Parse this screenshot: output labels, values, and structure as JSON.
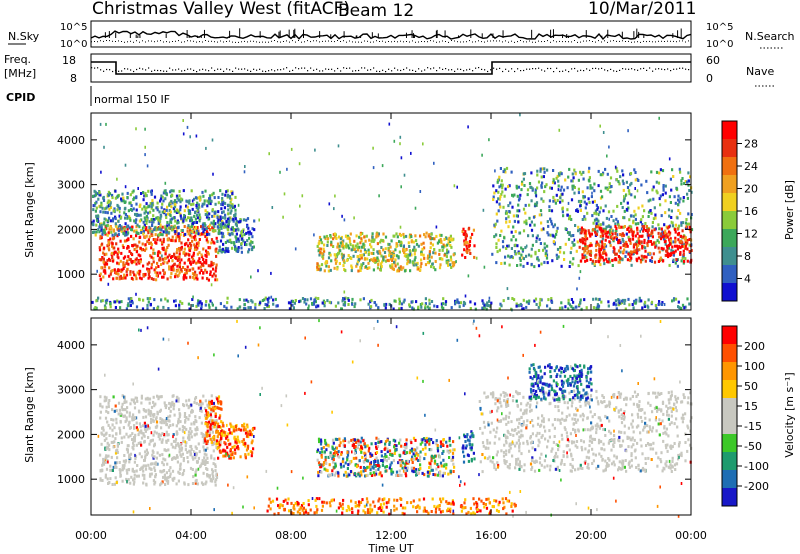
{
  "header": {
    "title": "Christmas Valley West (fitACF)",
    "beam": "Beam 12",
    "date": "10/Mar/2011"
  },
  "top_panels": {
    "nsky_label": "N.Sky",
    "nsky_ticks": [
      "10^5",
      "10^0"
    ],
    "nsearch_label": "N.Search",
    "nsearch_ticks": [
      "10^5",
      "10^0"
    ],
    "freq_label": "Freq.",
    "freq_unit": "[MHz]",
    "freq_ticks": [
      "18",
      "8"
    ],
    "nave_label": "Nave",
    "nave_ticks": [
      "60",
      "0"
    ],
    "cpid_label": "CPID",
    "cpid_value": "normal 150 IF"
  },
  "colors": {
    "power_scale": [
      "#1010d0",
      "#3060c0",
      "#3f8f8f",
      "#3ca85a",
      "#8acb3a",
      "#f0d020",
      "#f0a020",
      "#f07010",
      "#e83010",
      "#ff0000"
    ],
    "velocity_scale": [
      "#1818c8",
      "#1e6eb4",
      "#1e9b6e",
      "#3cc828",
      "#c8c8c0",
      "#c8c8c0",
      "#ffc800",
      "#ff9600",
      "#ff5000",
      "#ff0000"
    ],
    "ground_scatter": "#c8c8c0"
  },
  "chart_data": [
    {
      "type": "heatmap",
      "panel": "power",
      "ylabel": "Slant Range [km]",
      "yticks": [
        "1000",
        "2000",
        "3000",
        "4000"
      ],
      "ylim": [
        200,
        4600
      ],
      "xlim": [
        0,
        24
      ],
      "colorbar_label": "Power [dB]",
      "colorbar_ticks": [
        "28",
        "24",
        "20",
        "16",
        "12",
        "8",
        "4"
      ],
      "regions": [
        {
          "t0": 0.3,
          "t1": 5.0,
          "r0": 900,
          "r1": 2100,
          "level": 0.85
        },
        {
          "t0": 0.0,
          "t1": 5.8,
          "r0": 1900,
          "r1": 2900,
          "level": 0.3
        },
        {
          "t0": 5.0,
          "t1": 6.5,
          "r0": 1500,
          "r1": 2300,
          "level": 0.2
        },
        {
          "t0": 9.0,
          "t1": 14.5,
          "r0": 1100,
          "r1": 1950,
          "level": 0.5
        },
        {
          "t0": 14.8,
          "t1": 15.3,
          "r0": 1400,
          "r1": 2100,
          "level": 0.9
        },
        {
          "t0": 16.0,
          "t1": 24.0,
          "r0": 1200,
          "r1": 3400,
          "level": 0.3
        },
        {
          "t0": 19.5,
          "t1": 24.0,
          "r0": 1300,
          "r1": 2100,
          "level": 0.9
        },
        {
          "t0": 0.0,
          "t1": 24.0,
          "r0": 250,
          "r1": 500,
          "level": 0.25
        }
      ]
    },
    {
      "type": "heatmap",
      "panel": "velocity",
      "ylabel": "Slant Range [km]",
      "yticks": [
        "1000",
        "2000",
        "3000",
        "4000"
      ],
      "ylim": [
        200,
        4600
      ],
      "xlim": [
        0,
        24
      ],
      "xlabel": "Time UT",
      "xticks": [
        "00:00",
        "04:00",
        "08:00",
        "12:00",
        "16:00",
        "20:00",
        "00:00"
      ],
      "colorbar_label": "Velocity [m s⁻¹]",
      "colorbar_ticks": [
        "200",
        "100",
        "50",
        "15",
        "-15",
        "-50",
        "-100",
        "-200"
      ],
      "regions": [
        {
          "t0": 0.3,
          "t1": 5.0,
          "r0": 900,
          "r1": 2900,
          "class": "ground"
        },
        {
          "t0": 4.5,
          "t1": 5.2,
          "r0": 1800,
          "r1": 2900,
          "class": "away"
        },
        {
          "t0": 5.0,
          "t1": 6.5,
          "r0": 1500,
          "r1": 2300,
          "class": "away"
        },
        {
          "t0": 9.0,
          "t1": 14.5,
          "r0": 1100,
          "r1": 1950,
          "class": "mixed"
        },
        {
          "t0": 14.8,
          "t1": 15.3,
          "r0": 1400,
          "r1": 2100,
          "class": "toward"
        },
        {
          "t0": 15.5,
          "t1": 24.0,
          "r0": 1200,
          "r1": 3000,
          "class": "ground"
        },
        {
          "t0": 17.5,
          "t1": 20.0,
          "r0": 2800,
          "r1": 3600,
          "class": "toward"
        },
        {
          "t0": 7.0,
          "t1": 17.0,
          "r0": 250,
          "r1": 600,
          "class": "away"
        }
      ]
    }
  ]
}
